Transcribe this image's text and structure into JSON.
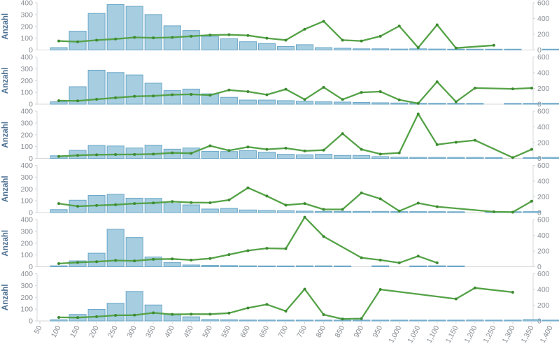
{
  "title": "Anzahl small-multiples histogram with overlay line",
  "colors": {
    "bar_fill": "#a6cde0",
    "bar_stroke": "#6aa7c8",
    "line": "#54a246",
    "marker": "#3d8b31",
    "axis_line": "#d4d7da",
    "tick_label": "#8a9096",
    "x_tick_label": "#878d93",
    "ylabel_color": "#4b6e90"
  },
  "x_axis": {
    "min": 50,
    "max": 1400,
    "tick_step": 50,
    "tick_labels": [
      "50",
      "100",
      "150",
      "200",
      "250",
      "300",
      "350",
      "400",
      "450",
      "500",
      "550",
      "600",
      "650",
      "700",
      "750",
      "800",
      "850",
      "900",
      "950",
      "1,000",
      "1,050",
      "1,100",
      "1,150",
      "1,200",
      "1,250",
      "1,300",
      "1,350",
      "1,400"
    ]
  },
  "chart_data": [
    {
      "type": "bar+line",
      "ylabel": "Anzahl",
      "left_axis": {
        "min": 0,
        "max": 400,
        "ticks": [
          0,
          100,
          200,
          300,
          400
        ]
      },
      "right_axis": {
        "min": 0,
        "max": 600,
        "ticks": [
          0,
          200,
          400,
          600
        ]
      },
      "bars": [
        [
          100,
          20
        ],
        [
          150,
          160
        ],
        [
          200,
          310
        ],
        [
          250,
          385
        ],
        [
          300,
          370
        ],
        [
          350,
          300
        ],
        [
          400,
          205
        ],
        [
          450,
          165
        ],
        [
          500,
          115
        ],
        [
          550,
          95
        ],
        [
          600,
          70
        ],
        [
          650,
          55
        ],
        [
          700,
          30
        ],
        [
          750,
          45
        ],
        [
          800,
          20
        ],
        [
          850,
          15
        ],
        [
          900,
          10
        ],
        [
          950,
          10
        ],
        [
          1000,
          8
        ],
        [
          1050,
          10
        ],
        [
          1100,
          8
        ],
        [
          1150,
          5
        ],
        [
          1200,
          5
        ],
        [
          1250,
          5
        ],
        [
          1300,
          5
        ],
        [
          1400,
          5
        ]
      ],
      "line": [
        [
          100,
          115
        ],
        [
          150,
          105
        ],
        [
          200,
          125
        ],
        [
          250,
          140
        ],
        [
          300,
          160
        ],
        [
          350,
          155
        ],
        [
          400,
          160
        ],
        [
          450,
          175
        ],
        [
          500,
          190
        ],
        [
          550,
          195
        ],
        [
          600,
          185
        ],
        [
          650,
          150
        ],
        [
          700,
          125
        ],
        [
          750,
          265
        ],
        [
          800,
          365
        ],
        [
          850,
          125
        ],
        [
          900,
          115
        ],
        [
          950,
          175
        ],
        [
          1000,
          305
        ],
        [
          1050,
          30
        ],
        [
          1100,
          320
        ],
        [
          1150,
          25
        ],
        [
          1250,
          60
        ]
      ]
    },
    {
      "type": "bar+line",
      "ylabel": "Anzahl",
      "left_axis": {
        "min": 0,
        "max": 400,
        "ticks": [
          0,
          100,
          200,
          300,
          400
        ]
      },
      "right_axis": {
        "min": 0,
        "max": 600,
        "ticks": [
          0,
          200,
          400,
          600
        ]
      },
      "bars": [
        [
          100,
          20
        ],
        [
          150,
          148
        ],
        [
          200,
          288
        ],
        [
          250,
          268
        ],
        [
          300,
          248
        ],
        [
          350,
          178
        ],
        [
          400,
          115
        ],
        [
          450,
          128
        ],
        [
          500,
          88
        ],
        [
          550,
          58
        ],
        [
          600,
          35
        ],
        [
          650,
          35
        ],
        [
          700,
          30
        ],
        [
          750,
          25
        ],
        [
          800,
          20
        ],
        [
          850,
          18
        ],
        [
          900,
          15
        ],
        [
          950,
          12
        ],
        [
          1000,
          10
        ],
        [
          1050,
          8
        ],
        [
          1100,
          8
        ],
        [
          1150,
          5
        ],
        [
          1200,
          5
        ],
        [
          1300,
          5
        ],
        [
          1350,
          5
        ],
        [
          1400,
          8
        ]
      ],
      "line": [
        [
          100,
          45
        ],
        [
          150,
          42
        ],
        [
          200,
          62
        ],
        [
          250,
          82
        ],
        [
          300,
          100
        ],
        [
          350,
          105
        ],
        [
          400,
          120
        ],
        [
          450,
          125
        ],
        [
          500,
          115
        ],
        [
          550,
          180
        ],
        [
          600,
          160
        ],
        [
          650,
          120
        ],
        [
          700,
          190
        ],
        [
          750,
          60
        ],
        [
          800,
          215
        ],
        [
          850,
          60
        ],
        [
          900,
          150
        ],
        [
          950,
          160
        ],
        [
          1000,
          55
        ],
        [
          1050,
          10
        ],
        [
          1100,
          285
        ],
        [
          1150,
          30
        ],
        [
          1200,
          205
        ],
        [
          1300,
          195
        ],
        [
          1350,
          205
        ]
      ]
    },
    {
      "type": "bar+line",
      "ylabel": "Anzahl",
      "left_axis": {
        "min": 0,
        "max": 400,
        "ticks": [
          0,
          100,
          200,
          300,
          400
        ]
      },
      "right_axis": {
        "min": 0,
        "max": 600,
        "ticks": [
          0,
          200,
          400,
          600
        ]
      },
      "bars": [
        [
          100,
          22
        ],
        [
          150,
          68
        ],
        [
          200,
          110
        ],
        [
          250,
          105
        ],
        [
          300,
          88
        ],
        [
          350,
          112
        ],
        [
          400,
          78
        ],
        [
          450,
          88
        ],
        [
          500,
          60
        ],
        [
          550,
          58
        ],
        [
          600,
          65
        ],
        [
          650,
          52
        ],
        [
          700,
          35
        ],
        [
          750,
          30
        ],
        [
          800,
          35
        ],
        [
          850,
          25
        ],
        [
          900,
          25
        ],
        [
          950,
          15
        ],
        [
          1000,
          10
        ],
        [
          1050,
          8
        ],
        [
          1100,
          8
        ],
        [
          1150,
          8
        ],
        [
          1200,
          8
        ],
        [
          1250,
          5
        ],
        [
          1350,
          5
        ],
        [
          1400,
          8
        ]
      ],
      "line": [
        [
          100,
          25
        ],
        [
          150,
          38
        ],
        [
          200,
          46
        ],
        [
          250,
          49
        ],
        [
          300,
          50
        ],
        [
          350,
          55
        ],
        [
          400,
          70
        ],
        [
          450,
          65
        ],
        [
          500,
          160
        ],
        [
          550,
          100
        ],
        [
          600,
          145
        ],
        [
          650,
          115
        ],
        [
          700,
          130
        ],
        [
          750,
          95
        ],
        [
          800,
          105
        ],
        [
          850,
          315
        ],
        [
          900,
          115
        ],
        [
          950,
          55
        ],
        [
          1000,
          70
        ],
        [
          1050,
          565
        ],
        [
          1100,
          175
        ],
        [
          1150,
          205
        ],
        [
          1200,
          230
        ],
        [
          1300,
          10
        ],
        [
          1350,
          115
        ]
      ]
    },
    {
      "type": "bar+line",
      "ylabel": "Anzahl",
      "left_axis": {
        "min": 0,
        "max": 400,
        "ticks": [
          0,
          100,
          200,
          300,
          400
        ]
      },
      "right_axis": {
        "min": 0,
        "max": 600,
        "ticks": [
          0,
          200,
          400,
          600
        ]
      },
      "bars": [
        [
          100,
          25
        ],
        [
          150,
          105
        ],
        [
          200,
          145
        ],
        [
          250,
          155
        ],
        [
          300,
          122
        ],
        [
          350,
          120
        ],
        [
          400,
          75
        ],
        [
          450,
          65
        ],
        [
          500,
          30
        ],
        [
          550,
          35
        ],
        [
          600,
          22
        ],
        [
          650,
          18
        ],
        [
          700,
          15
        ],
        [
          750,
          12
        ],
        [
          800,
          10
        ],
        [
          850,
          10
        ],
        [
          900,
          10
        ],
        [
          950,
          10
        ],
        [
          1000,
          8
        ],
        [
          1050,
          8
        ],
        [
          1100,
          8
        ],
        [
          1150,
          5
        ],
        [
          1250,
          5
        ],
        [
          1300,
          5
        ],
        [
          1350,
          8
        ]
      ],
      "line": [
        [
          100,
          115
        ],
        [
          150,
          80
        ],
        [
          200,
          90
        ],
        [
          250,
          100
        ],
        [
          300,
          115
        ],
        [
          350,
          122
        ],
        [
          400,
          140
        ],
        [
          450,
          127
        ],
        [
          500,
          125
        ],
        [
          550,
          160
        ],
        [
          600,
          315
        ],
        [
          650,
          210
        ],
        [
          700,
          95
        ],
        [
          750,
          115
        ],
        [
          800,
          40
        ],
        [
          850,
          40
        ],
        [
          900,
          250
        ],
        [
          950,
          175
        ],
        [
          1000,
          20
        ],
        [
          1050,
          120
        ],
        [
          1100,
          75
        ],
        [
          1250,
          10
        ],
        [
          1300,
          5
        ],
        [
          1350,
          145
        ]
      ]
    },
    {
      "type": "bar+line",
      "ylabel": "Anzahl",
      "left_axis": {
        "min": 0,
        "max": 400,
        "ticks": [
          0,
          100,
          200,
          300,
          400
        ]
      },
      "right_axis": {
        "min": 0,
        "max": 600,
        "ticks": [
          0,
          200,
          400,
          600
        ]
      },
      "bars": [
        [
          100,
          8
        ],
        [
          150,
          50
        ],
        [
          200,
          115
        ],
        [
          250,
          318
        ],
        [
          300,
          248
        ],
        [
          350,
          83
        ],
        [
          400,
          35
        ],
        [
          450,
          15
        ],
        [
          500,
          12
        ],
        [
          550,
          10
        ],
        [
          600,
          8
        ],
        [
          650,
          5
        ],
        [
          700,
          5
        ],
        [
          750,
          8
        ],
        [
          800,
          8
        ],
        [
          850,
          5
        ],
        [
          950,
          8
        ],
        [
          1050,
          5
        ],
        [
          1100,
          8
        ],
        [
          1150,
          5
        ]
      ],
      "line": [
        [
          100,
          40
        ],
        [
          150,
          55
        ],
        [
          200,
          65
        ],
        [
          250,
          80
        ],
        [
          300,
          75
        ],
        [
          350,
          95
        ],
        [
          400,
          100
        ],
        [
          450,
          85
        ],
        [
          500,
          105
        ],
        [
          550,
          155
        ],
        [
          600,
          205
        ],
        [
          650,
          235
        ],
        [
          700,
          230
        ],
        [
          750,
          630
        ],
        [
          800,
          385
        ],
        [
          900,
          115
        ],
        [
          950,
          85
        ],
        [
          1000,
          50
        ],
        [
          1050,
          135
        ],
        [
          1100,
          50
        ]
      ]
    },
    {
      "type": "bar+line",
      "ylabel": "Anzahl",
      "left_axis": {
        "min": 0,
        "max": 400,
        "ticks": [
          0,
          100,
          200,
          300,
          400
        ]
      },
      "right_axis": {
        "min": 0,
        "max": 600,
        "ticks": [
          0,
          200,
          400,
          600
        ]
      },
      "bars": [
        [
          100,
          10
        ],
        [
          150,
          55
        ],
        [
          200,
          98
        ],
        [
          250,
          150
        ],
        [
          300,
          250
        ],
        [
          350,
          135
        ],
        [
          400,
          60
        ],
        [
          450,
          35
        ],
        [
          500,
          12
        ],
        [
          550,
          10
        ],
        [
          600,
          8
        ],
        [
          650,
          8
        ],
        [
          700,
          5
        ],
        [
          750,
          5
        ],
        [
          800,
          5
        ],
        [
          850,
          5
        ],
        [
          900,
          5
        ],
        [
          950,
          5
        ],
        [
          1000,
          5
        ],
        [
          1050,
          5
        ],
        [
          1100,
          5
        ],
        [
          1150,
          5
        ],
        [
          1200,
          8
        ],
        [
          1250,
          5
        ],
        [
          1300,
          5
        ],
        [
          1350,
          12
        ],
        [
          1400,
          5
        ]
      ],
      "line": [
        [
          100,
          45
        ],
        [
          150,
          43
        ],
        [
          200,
          54
        ],
        [
          250,
          71
        ],
        [
          300,
          74
        ],
        [
          350,
          103
        ],
        [
          400,
          83
        ],
        [
          450,
          86
        ],
        [
          500,
          86
        ],
        [
          550,
          100
        ],
        [
          600,
          165
        ],
        [
          650,
          210
        ],
        [
          700,
          125
        ],
        [
          750,
          405
        ],
        [
          800,
          80
        ],
        [
          850,
          25
        ],
        [
          900,
          30
        ],
        [
          950,
          400
        ],
        [
          1150,
          280
        ],
        [
          1200,
          420
        ],
        [
          1300,
          365
        ]
      ]
    }
  ]
}
